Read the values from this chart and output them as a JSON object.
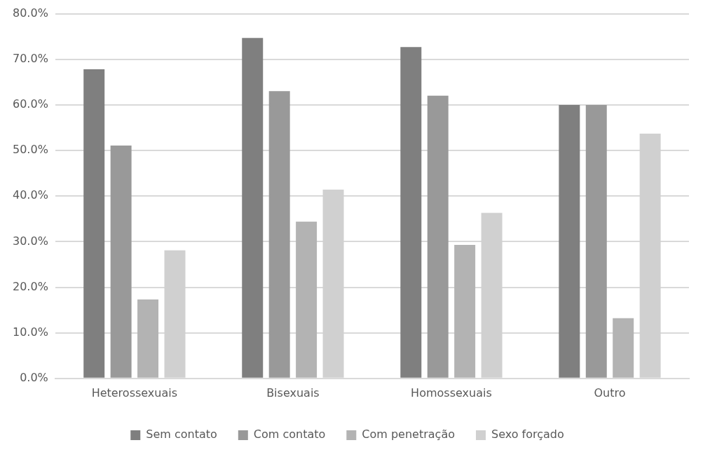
{
  "chart_data": {
    "type": "bar",
    "categories": [
      "Heterossexuais",
      "Bisexuais",
      "Homossexuais",
      "Outro"
    ],
    "series": [
      {
        "name": "Sem contato",
        "color": "#7f7f7f",
        "values": [
          67.8,
          74.7,
          72.7,
          60.0
        ]
      },
      {
        "name": "Com contato",
        "color": "#999999",
        "values": [
          51.1,
          63.0,
          62.0,
          60.0
        ]
      },
      {
        "name": "Com penetração",
        "color": "#b3b3b3",
        "values": [
          17.3,
          34.4,
          29.3,
          13.2
        ]
      },
      {
        "name": "Sexo forçado",
        "color": "#d0d0d0",
        "values": [
          28.1,
          41.4,
          36.3,
          53.7
        ]
      }
    ],
    "ylim": [
      0,
      80
    ],
    "yticks": [
      {
        "value": 0,
        "label": "0.0%"
      },
      {
        "value": 10,
        "label": "10.0%"
      },
      {
        "value": 20,
        "label": "20.0%"
      },
      {
        "value": 30,
        "label": "30.0%"
      },
      {
        "value": 40,
        "label": "40.0%"
      },
      {
        "value": 50,
        "label": "50.0%"
      },
      {
        "value": 60,
        "label": "60.0%"
      },
      {
        "value": 70,
        "label": "70.0%"
      },
      {
        "value": 80,
        "label": "80.0%"
      }
    ],
    "grid": "y",
    "legend": "bottom"
  }
}
